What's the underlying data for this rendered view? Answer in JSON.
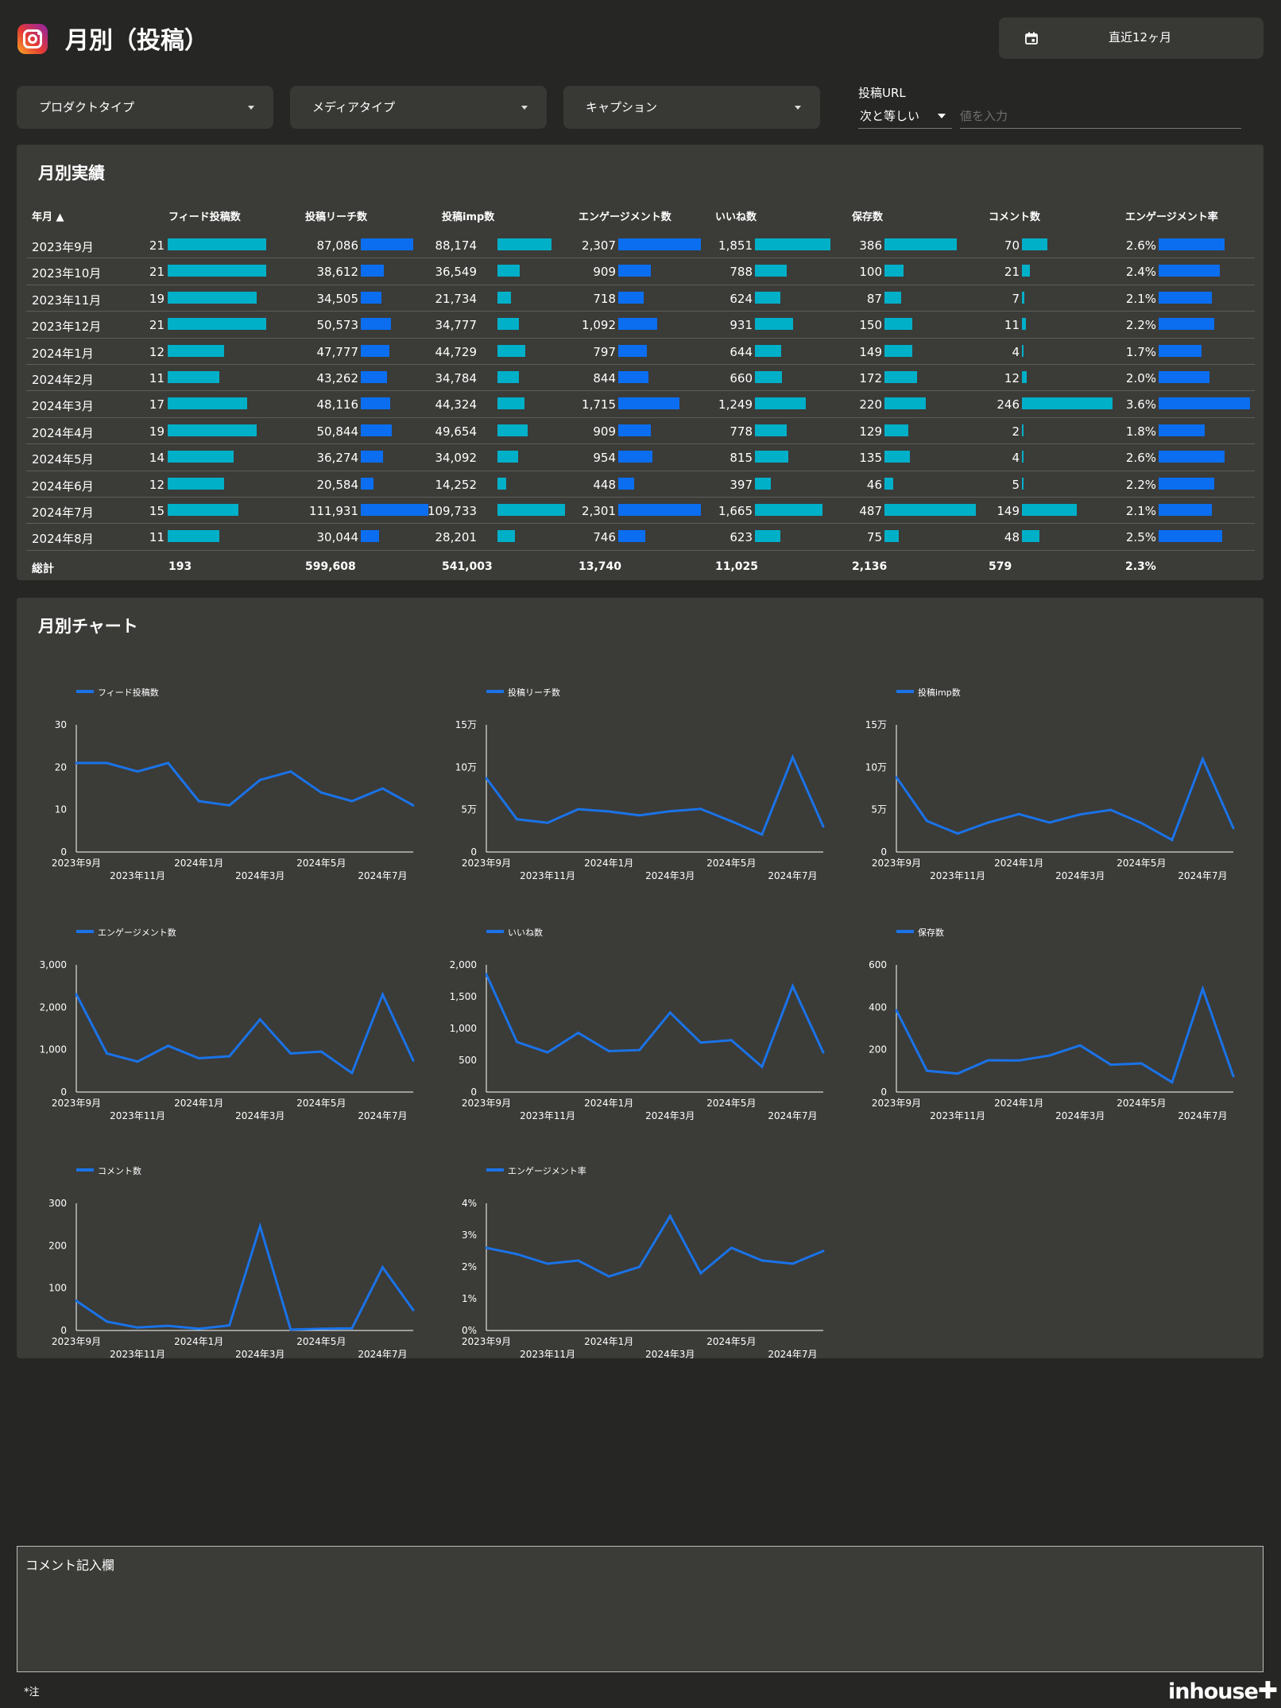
{
  "header": {
    "title": "月別（投稿）",
    "date_range": "直近12ヶ月"
  },
  "filters": [
    {
      "label": "プロダクトタイプ"
    },
    {
      "label": "メディアタイプ"
    },
    {
      "label": "キャプション"
    }
  ],
  "url_filter": {
    "label": "投稿URL",
    "operator": "次と等しい",
    "placeholder": "値を入力"
  },
  "table": {
    "title": "月別実績",
    "columns": [
      "年月 ▲",
      "フィード投稿数",
      "投稿リーチ数",
      "投稿imp数",
      "エンゲージメント数",
      "いいね数",
      "保存数",
      "コメント数",
      "エンゲージメント率"
    ],
    "rows": [
      [
        "2023年9月",
        "21",
        "87,086",
        "88,174",
        "2,307",
        "1,851",
        "386",
        "70",
        "2.6%"
      ],
      [
        "2023年10月",
        "21",
        "38,612",
        "36,549",
        "909",
        "788",
        "100",
        "21",
        "2.4%"
      ],
      [
        "2023年11月",
        "19",
        "34,505",
        "21,734",
        "718",
        "624",
        "87",
        "7",
        "2.1%"
      ],
      [
        "2023年12月",
        "21",
        "50,573",
        "34,777",
        "1,092",
        "931",
        "150",
        "11",
        "2.2%"
      ],
      [
        "2024年1月",
        "12",
        "47,777",
        "44,729",
        "797",
        "644",
        "149",
        "4",
        "1.7%"
      ],
      [
        "2024年2月",
        "11",
        "43,262",
        "34,784",
        "844",
        "660",
        "172",
        "12",
        "2.0%"
      ],
      [
        "2024年3月",
        "17",
        "48,116",
        "44,324",
        "1,715",
        "1,249",
        "220",
        "246",
        "3.6%"
      ],
      [
        "2024年4月",
        "19",
        "50,844",
        "49,654",
        "909",
        "778",
        "129",
        "2",
        "1.8%"
      ],
      [
        "2024年5月",
        "14",
        "36,274",
        "34,092",
        "954",
        "815",
        "135",
        "4",
        "2.6%"
      ],
      [
        "2024年6月",
        "12",
        "20,584",
        "14,252",
        "448",
        "397",
        "46",
        "5",
        "2.2%"
      ],
      [
        "2024年7月",
        "15",
        "111,931",
        "109,733",
        "2,301",
        "1,665",
        "487",
        "149",
        "2.1%"
      ],
      [
        "2024年8月",
        "11",
        "30,044",
        "28,201",
        "746",
        "623",
        "75",
        "48",
        "2.5%"
      ]
    ],
    "bar_values": [
      [
        21,
        87086,
        88174,
        2307,
        1851,
        386,
        70,
        2.6
      ],
      [
        21,
        38612,
        36549,
        909,
        788,
        100,
        21,
        2.4
      ],
      [
        19,
        34505,
        21734,
        718,
        624,
        87,
        7,
        2.1
      ],
      [
        21,
        50573,
        34777,
        1092,
        931,
        150,
        11,
        2.2
      ],
      [
        12,
        47777,
        44729,
        797,
        644,
        149,
        4,
        1.7
      ],
      [
        11,
        43262,
        34784,
        844,
        660,
        172,
        12,
        2.0
      ],
      [
        17,
        48116,
        44324,
        1715,
        1249,
        220,
        246,
        3.6
      ],
      [
        19,
        50844,
        49654,
        909,
        778,
        129,
        2,
        1.8
      ],
      [
        14,
        36274,
        34092,
        954,
        815,
        135,
        4,
        2.6
      ],
      [
        12,
        20584,
        14252,
        448,
        397,
        46,
        5,
        2.2
      ],
      [
        15,
        111931,
        109733,
        2301,
        1665,
        487,
        149,
        2.1
      ],
      [
        11,
        30044,
        28201,
        746,
        623,
        75,
        48,
        2.5
      ]
    ],
    "bar_colors": [
      "#00b0c8",
      "#0b6ef0",
      "#00b0c8",
      "#0b6ef0",
      "#00b0c8",
      "#00b0c8",
      "#00b0c8",
      "#0b6ef0"
    ],
    "totals": [
      "総計",
      "193",
      "599,608",
      "541,003",
      "13,740",
      "11,025",
      "2,136",
      "579",
      "2.3%"
    ]
  },
  "chart_panel_title": "月別チャート",
  "chart_data": [
    {
      "type": "line",
      "title": "フィード投稿数",
      "legend": "フィード投稿数",
      "x": [
        "2023年9月",
        "2023年10月",
        "2023年11月",
        "2023年12月",
        "2024年1月",
        "2024年2月",
        "2024年3月",
        "2024年4月",
        "2024年5月",
        "2024年6月",
        "2024年7月",
        "2024年8月"
      ],
      "values": [
        21,
        21,
        19,
        21,
        12,
        11,
        17,
        19,
        14,
        12,
        15,
        11
      ],
      "ylim": [
        0,
        30
      ],
      "yticks": [
        0,
        10,
        20,
        30
      ],
      "ytick_labels": [
        "0",
        "10",
        "20",
        "30"
      ],
      "color": "#1a73e8"
    },
    {
      "type": "line",
      "title": "投稿リーチ数",
      "legend": "投稿リーチ数",
      "x": [
        "2023年9月",
        "2023年10月",
        "2023年11月",
        "2023年12月",
        "2024年1月",
        "2024年2月",
        "2024年3月",
        "2024年4月",
        "2024年5月",
        "2024年6月",
        "2024年7月",
        "2024年8月"
      ],
      "values": [
        87086,
        38612,
        34505,
        50573,
        47777,
        43262,
        48116,
        50844,
        36274,
        20584,
        111931,
        30044
      ],
      "ylim": [
        0,
        150000
      ],
      "yticks": [
        0,
        50000,
        100000,
        150000
      ],
      "ytick_labels": [
        "0",
        "5万",
        "10万",
        "15万"
      ],
      "color": "#1a73e8"
    },
    {
      "type": "line",
      "title": "投稿imp数",
      "legend": "投稿imp数",
      "x": [
        "2023年9月",
        "2023年10月",
        "2023年11月",
        "2023年12月",
        "2024年1月",
        "2024年2月",
        "2024年3月",
        "2024年4月",
        "2024年5月",
        "2024年6月",
        "2024年7月",
        "2024年8月"
      ],
      "values": [
        88174,
        36549,
        21734,
        34777,
        44729,
        34784,
        44324,
        49654,
        34092,
        14252,
        109733,
        28201
      ],
      "ylim": [
        0,
        150000
      ],
      "yticks": [
        0,
        50000,
        100000,
        150000
      ],
      "ytick_labels": [
        "0",
        "5万",
        "10万",
        "15万"
      ],
      "color": "#1a73e8"
    },
    {
      "type": "line",
      "title": "エンゲージメント数",
      "legend": "エンゲージメント数",
      "x": [
        "2023年9月",
        "2023年10月",
        "2023年11月",
        "2023年12月",
        "2024年1月",
        "2024年2月",
        "2024年3月",
        "2024年4月",
        "2024年5月",
        "2024年6月",
        "2024年7月",
        "2024年8月"
      ],
      "values": [
        2307,
        909,
        718,
        1092,
        797,
        844,
        1715,
        909,
        954,
        448,
        2301,
        746
      ],
      "ylim": [
        0,
        3000
      ],
      "yticks": [
        0,
        1000,
        2000,
        3000
      ],
      "ytick_labels": [
        "0",
        "1,000",
        "2,000",
        "3,000"
      ],
      "color": "#1a73e8"
    },
    {
      "type": "line",
      "title": "いいね数",
      "legend": "いいね数",
      "x": [
        "2023年9月",
        "2023年10月",
        "2023年11月",
        "2023年12月",
        "2024年1月",
        "2024年2月",
        "2024年3月",
        "2024年4月",
        "2024年5月",
        "2024年6月",
        "2024年7月",
        "2024年8月"
      ],
      "values": [
        1851,
        788,
        624,
        931,
        644,
        660,
        1249,
        778,
        815,
        397,
        1665,
        623
      ],
      "ylim": [
        0,
        2000
      ],
      "yticks": [
        0,
        500,
        1000,
        1500,
        2000
      ],
      "ytick_labels": [
        "0",
        "500",
        "1,000",
        "1,500",
        "2,000"
      ],
      "color": "#1a73e8"
    },
    {
      "type": "line",
      "title": "保存数",
      "legend": "保存数",
      "x": [
        "2023年9月",
        "2023年10月",
        "2023年11月",
        "2023年12月",
        "2024年1月",
        "2024年2月",
        "2024年3月",
        "2024年4月",
        "2024年5月",
        "2024年6月",
        "2024年7月",
        "2024年8月"
      ],
      "values": [
        386,
        100,
        87,
        150,
        149,
        172,
        220,
        129,
        135,
        46,
        487,
        75
      ],
      "ylim": [
        0,
        600
      ],
      "yticks": [
        0,
        200,
        400,
        600
      ],
      "ytick_labels": [
        "0",
        "200",
        "400",
        "600"
      ],
      "color": "#1a73e8"
    },
    {
      "type": "line",
      "title": "コメント数",
      "legend": "コメント数",
      "x": [
        "2023年9月",
        "2023年10月",
        "2023年11月",
        "2023年12月",
        "2024年1月",
        "2024年2月",
        "2024年3月",
        "2024年4月",
        "2024年5月",
        "2024年6月",
        "2024年7月",
        "2024年8月"
      ],
      "values": [
        70,
        21,
        7,
        11,
        4,
        12,
        246,
        2,
        4,
        5,
        149,
        48
      ],
      "ylim": [
        0,
        300
      ],
      "yticks": [
        0,
        100,
        200,
        300
      ],
      "ytick_labels": [
        "0",
        "100",
        "200",
        "300"
      ],
      "color": "#1a73e8"
    },
    {
      "type": "line",
      "title": "エンゲージメント率",
      "legend": "エンゲージメント率",
      "x": [
        "2023年9月",
        "2023年10月",
        "2023年11月",
        "2023年12月",
        "2024年1月",
        "2024年2月",
        "2024年3月",
        "2024年4月",
        "2024年5月",
        "2024年6月",
        "2024年7月",
        "2024年8月"
      ],
      "values": [
        2.6,
        2.4,
        2.1,
        2.2,
        1.7,
        2.0,
        3.6,
        1.8,
        2.6,
        2.2,
        2.1,
        2.5
      ],
      "ylim": [
        0,
        4
      ],
      "yticks": [
        0,
        1,
        2,
        3,
        4
      ],
      "ytick_labels": [
        "0%",
        "1%",
        "2%",
        "3%",
        "4%"
      ],
      "color": "#1a73e8"
    }
  ],
  "x_tick_labels_upper": [
    "2023年9月",
    "2024年1月",
    "2024年5月"
  ],
  "x_tick_labels_lower": [
    "2023年11月",
    "2024年3月",
    "2024年7月"
  ],
  "comment": {
    "label": "コメント記入欄"
  },
  "footer": {
    "note": "*注",
    "brand": "inhouse",
    "brand_mark": "✚"
  }
}
